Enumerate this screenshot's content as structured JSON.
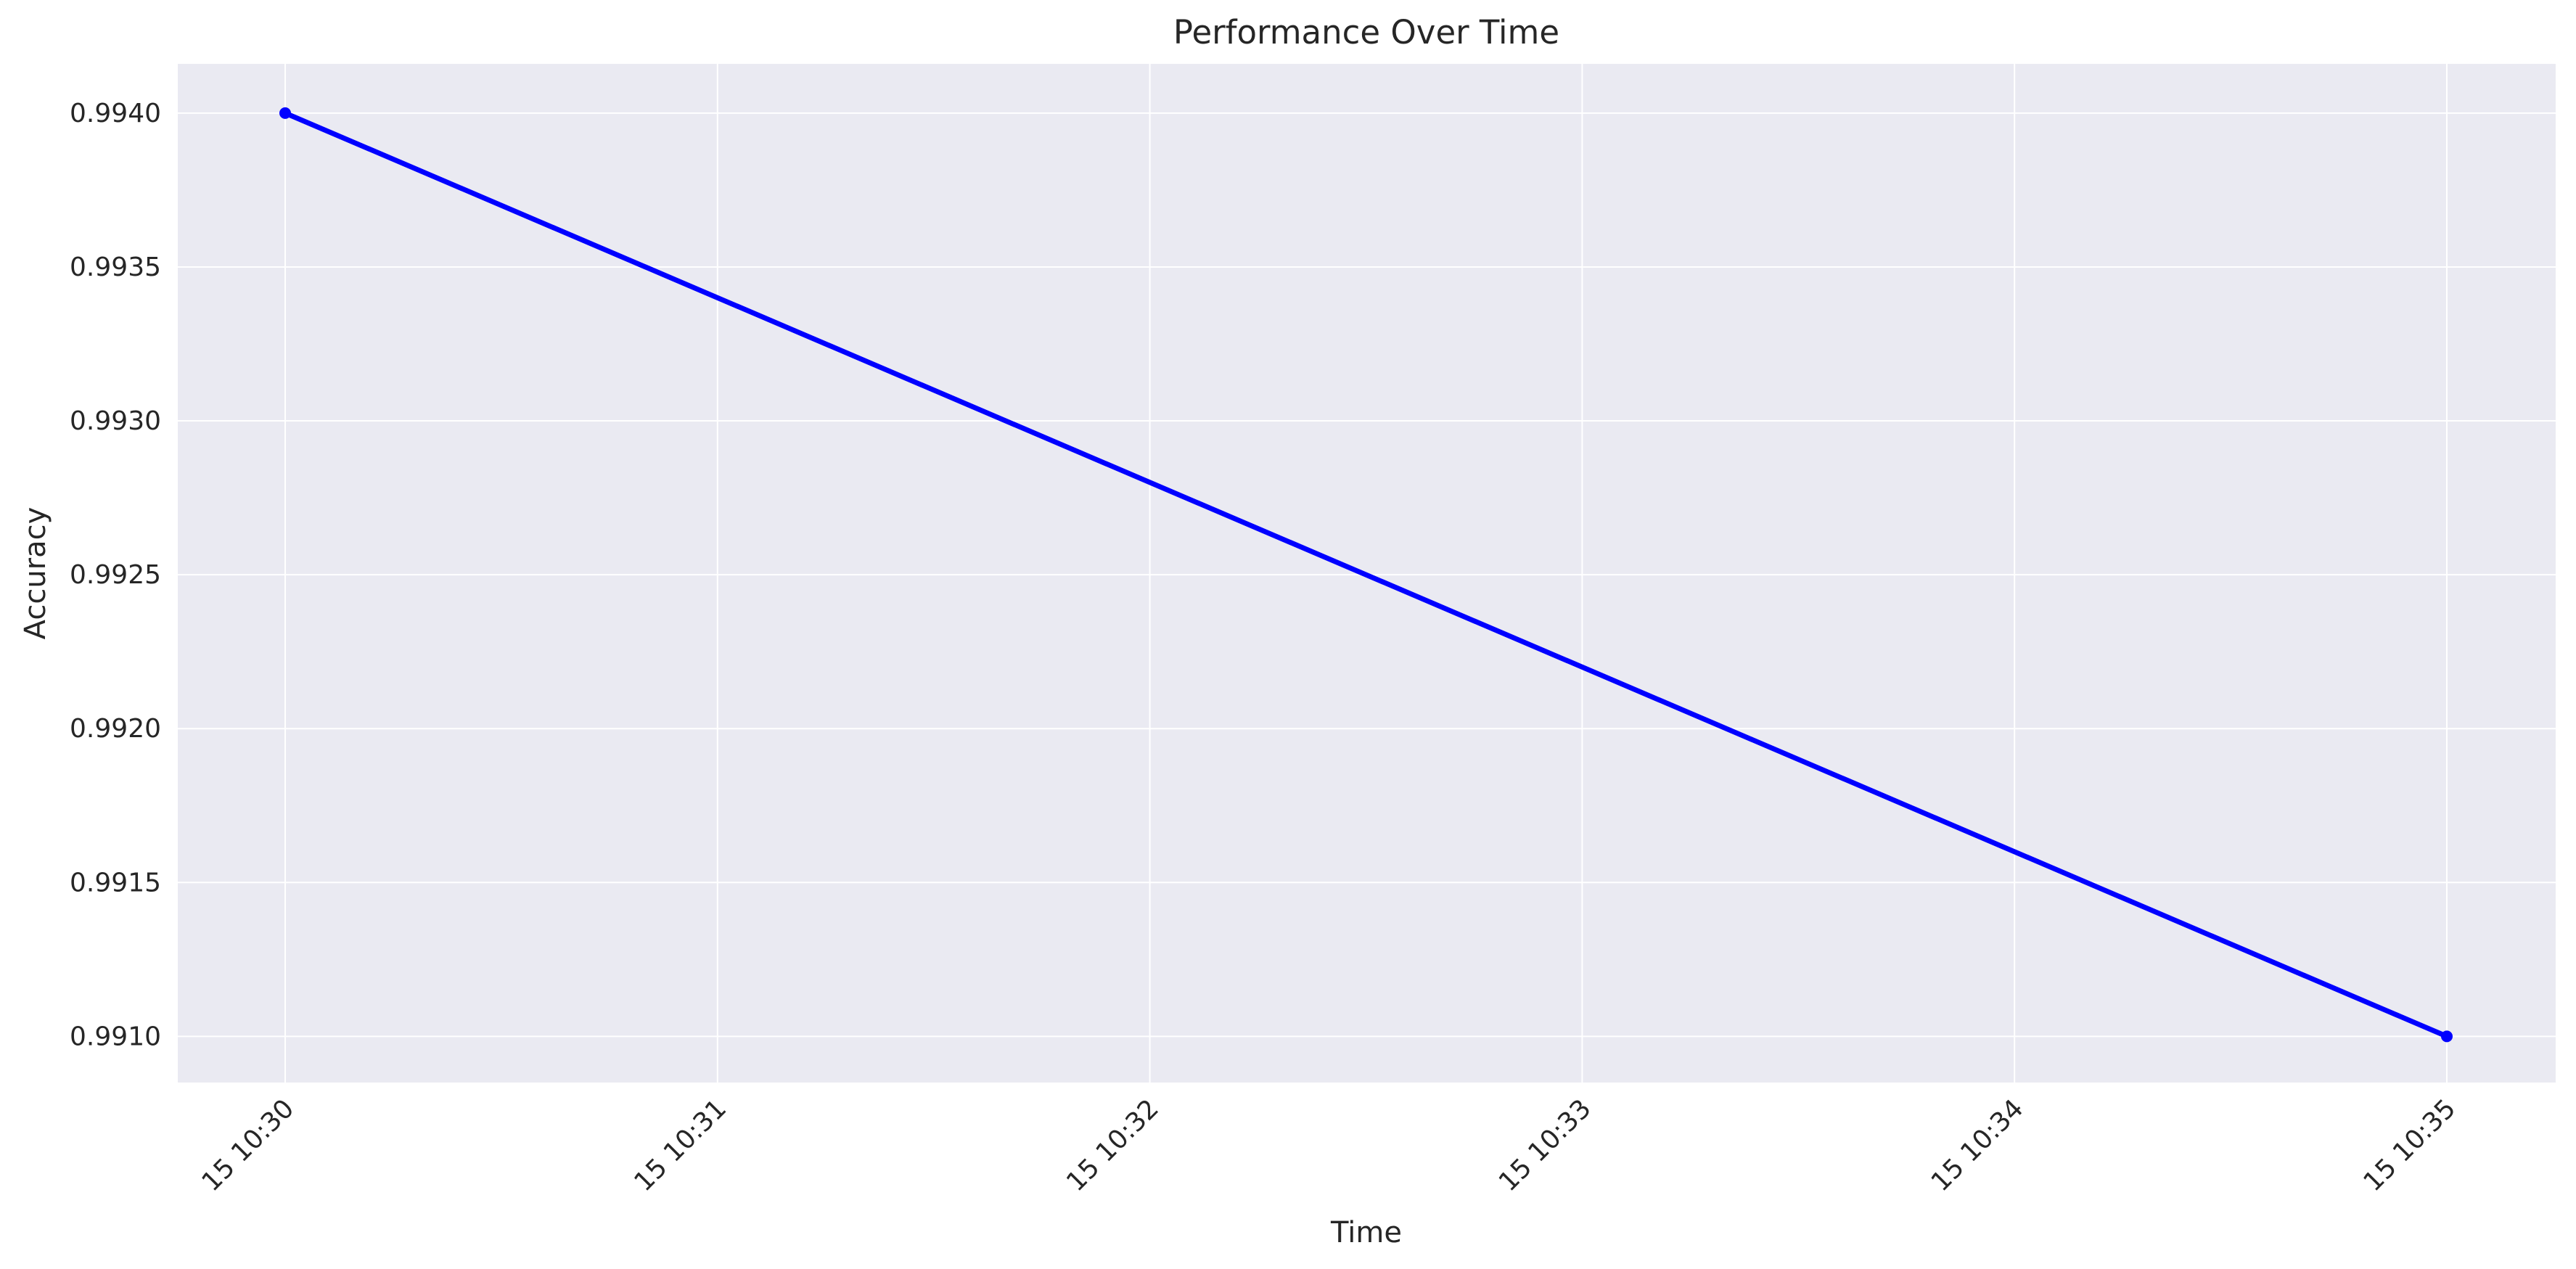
{
  "chart_data": {
    "type": "line",
    "title": "Performance Over Time",
    "xlabel": "Time",
    "ylabel": "Accuracy",
    "x_ticks": [
      "15 10:30",
      "15 10:31",
      "15 10:32",
      "15 10:33",
      "15 10:34",
      "15 10:35"
    ],
    "y_ticks": [
      "0.9910",
      "0.9915",
      "0.9920",
      "0.9925",
      "0.9930",
      "0.9935",
      "0.9940"
    ],
    "ylim": [
      0.99085,
      0.99416
    ],
    "grid": true,
    "series": [
      {
        "color": "#0000ff",
        "points": [
          {
            "x": "15 10:30",
            "y": 0.994
          },
          {
            "x": "15 10:35",
            "y": 0.991
          }
        ]
      }
    ]
  }
}
